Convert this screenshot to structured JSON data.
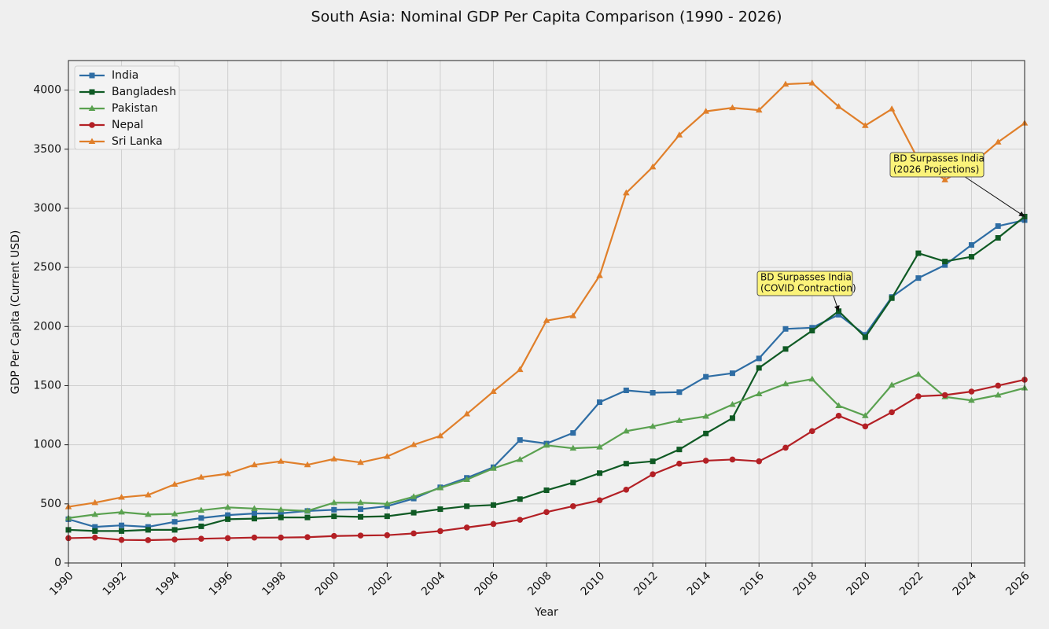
{
  "chart_data": {
    "type": "line",
    "title": "South Asia: Nominal GDP Per Capita Comparison (1990 - 2026)",
    "x_label": "Year",
    "y_label": "GDP Per Capita (Current USD)",
    "x": [
      1990,
      1991,
      1992,
      1993,
      1994,
      1995,
      1996,
      1997,
      1998,
      1999,
      2000,
      2001,
      2002,
      2003,
      2004,
      2005,
      2006,
      2007,
      2008,
      2009,
      2010,
      2011,
      2012,
      2013,
      2014,
      2015,
      2016,
      2017,
      2018,
      2019,
      2020,
      2021,
      2022,
      2023,
      2024,
      2025,
      2026
    ],
    "xlim": [
      1990,
      2026
    ],
    "xticks": [
      1990,
      1992,
      1994,
      1996,
      1998,
      2000,
      2002,
      2004,
      2006,
      2008,
      2010,
      2012,
      2014,
      2016,
      2018,
      2020,
      2022,
      2024,
      2026
    ],
    "ylim": [
      0,
      4250
    ],
    "yticks": [
      0,
      500,
      1000,
      1500,
      2000,
      2500,
      3000,
      3500,
      4000
    ],
    "grid": true,
    "legend": "upper-left",
    "series": [
      {
        "name": "India",
        "color": "#2e6da4",
        "marker": "square",
        "values": [
          370,
          305,
          318,
          305,
          348,
          380,
          405,
          418,
          420,
          440,
          450,
          455,
          480,
          545,
          640,
          720,
          810,
          1040,
          1010,
          1100,
          1360,
          1460,
          1440,
          1445,
          1575,
          1605,
          1730,
          1980,
          1990,
          2100,
          1930,
          2250,
          2410,
          2520,
          2690,
          2850,
          2900
        ]
      },
      {
        "name": "Bangladesh",
        "color": "#0f5a24",
        "marker": "square",
        "values": [
          280,
          270,
          270,
          280,
          280,
          310,
          370,
          375,
          385,
          385,
          395,
          390,
          395,
          425,
          455,
          480,
          490,
          540,
          615,
          680,
          760,
          840,
          860,
          960,
          1095,
          1225,
          1650,
          1810,
          1965,
          2130,
          1910,
          2240,
          2620,
          2550,
          2590,
          2750,
          2930
        ]
      },
      {
        "name": "Pakistan",
        "color": "#5aa150",
        "marker": "triangle",
        "values": [
          380,
          410,
          430,
          410,
          415,
          445,
          470,
          460,
          450,
          440,
          510,
          510,
          500,
          560,
          635,
          705,
          800,
          875,
          995,
          970,
          980,
          1115,
          1155,
          1205,
          1240,
          1340,
          1430,
          1515,
          1555,
          1330,
          1245,
          1505,
          1595,
          1405,
          1375,
          1420,
          1480
        ]
      },
      {
        "name": "Nepal",
        "color": "#b32025",
        "marker": "circle",
        "values": [
          210,
          215,
          195,
          193,
          198,
          205,
          210,
          215,
          215,
          218,
          228,
          232,
          235,
          250,
          270,
          300,
          330,
          365,
          430,
          480,
          530,
          620,
          750,
          840,
          865,
          875,
          860,
          975,
          1115,
          1245,
          1155,
          1275,
          1410,
          1420,
          1450,
          1500,
          1550
        ]
      },
      {
        "name": "Sri Lanka",
        "color": "#e07f2a",
        "marker": "triangle",
        "values": [
          475,
          510,
          555,
          575,
          665,
          725,
          755,
          830,
          860,
          830,
          880,
          850,
          900,
          1000,
          1075,
          1260,
          1450,
          1635,
          2050,
          2090,
          2430,
          3130,
          3350,
          3620,
          3820,
          3850,
          3830,
          4050,
          4060,
          3860,
          3700,
          3840,
          3410,
          3240,
          3370,
          3560,
          3720
        ]
      }
    ],
    "annotations": [
      {
        "text": [
          "BD Surpasses India",
          "(COVID Contraction)"
        ],
        "x": 2019,
        "y": 2130
      },
      {
        "text": [
          "BD Surpasses India",
          "(2026 Projections)"
        ],
        "x": 2026,
        "y": 2930
      }
    ]
  }
}
